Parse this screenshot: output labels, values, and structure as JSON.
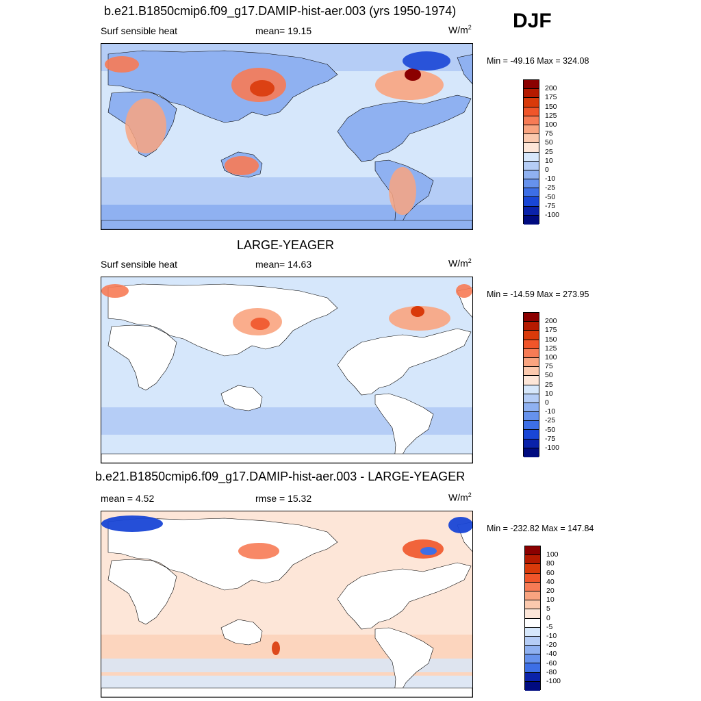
{
  "season": "DJF",
  "panels": [
    {
      "title": "b.e21.B1850cmip6.f09_g17.DAMIP-hist-aer.003 (yrs 1950-1974)",
      "left": "Surf sensible heat",
      "center": "mean=  19.15",
      "units_base": "W/m",
      "units_exp": "2",
      "minmax": "Min = -49.16 Max = 324.08",
      "ticks": [
        "200",
        "175",
        "150",
        "125",
        "100",
        "75",
        "50",
        "25",
        "10",
        "0",
        "-10",
        "-25",
        "-50",
        "-75",
        "-100"
      ],
      "colors": [
        "#8b0000",
        "#b51a00",
        "#d93a0a",
        "#f0552a",
        "#f77b55",
        "#f9a480",
        "#fbc9ae",
        "#fde6d8",
        "#d6e7fb",
        "#b5cdf6",
        "#8fb1f1",
        "#6692ed",
        "#3d6fe6",
        "#1946d6",
        "#0a22aa",
        "#000b80"
      ],
      "map_style": "a"
    },
    {
      "title": "LARGE-YEAGER",
      "left": "Surf sensible heat",
      "center": "mean=  14.63",
      "units_base": "W/m",
      "units_exp": "2",
      "minmax": "Min = -14.59 Max = 273.95",
      "ticks": [
        "200",
        "175",
        "150",
        "125",
        "100",
        "75",
        "50",
        "25",
        "10",
        "0",
        "-10",
        "-25",
        "-50",
        "-75",
        "-100"
      ],
      "colors": [
        "#8b0000",
        "#b51a00",
        "#d93a0a",
        "#f0552a",
        "#f77b55",
        "#f9a480",
        "#fbc9ae",
        "#fde6d8",
        "#d6e7fb",
        "#b5cdf6",
        "#8fb1f1",
        "#6692ed",
        "#3d6fe6",
        "#1946d6",
        "#0a22aa",
        "#000b80"
      ],
      "map_style": "b"
    },
    {
      "title": "b.e21.B1850cmip6.f09_g17.DAMIP-hist-aer.003 - LARGE-YEAGER",
      "left": "mean =   4.52",
      "center": "rmse =  15.32",
      "units_base": "W/m",
      "units_exp": "2",
      "minmax": "Min = -232.82 Max = 147.84",
      "ticks": [
        "100",
        "80",
        "60",
        "40",
        "20",
        "10",
        "5",
        "0",
        "-5",
        "-10",
        "-20",
        "-40",
        "-60",
        "-80",
        "-100"
      ],
      "colors": [
        "#8b0000",
        "#b51a00",
        "#d93a0a",
        "#f0552a",
        "#f77b55",
        "#f9a480",
        "#fbc9ae",
        "#fde6d8",
        "#ffffff",
        "#d6e7fb",
        "#b5cdf6",
        "#8fb1f1",
        "#6692ed",
        "#3d6fe6",
        "#0a22aa",
        "#000b80"
      ],
      "map_style": "c"
    }
  ]
}
